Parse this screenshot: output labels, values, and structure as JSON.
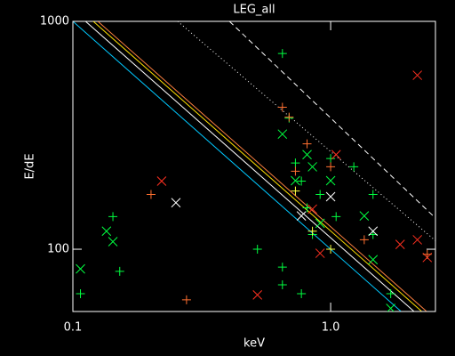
{
  "chart_data": {
    "type": "scatter",
    "title": "LEG_all",
    "xlabel": "keV",
    "ylabel": "E/dE",
    "xscale": "log",
    "yscale": "log",
    "xlim": [
      0.1,
      2.55
    ],
    "ylim": [
      53.3,
      1000
    ],
    "xticks": [
      0.1,
      {
        "value": 1,
        "label": "1.0"
      }
    ],
    "yticks": [
      100,
      1000
    ],
    "series": [
      {
        "mode": "line",
        "color": "#00c8ff",
        "dash": "solid",
        "x": [
          0.1,
          1.87
        ],
        "values": [
          1000,
          53.5
        ]
      },
      {
        "mode": "line",
        "color": "#ffffff",
        "dash": "solid",
        "x": [
          0.112,
          2.1
        ],
        "values": [
          1000,
          53.5
        ]
      },
      {
        "mode": "line",
        "color": "#ffe000",
        "dash": "solid",
        "x": [
          0.12,
          2.25
        ],
        "values": [
          1000,
          53.5
        ]
      },
      {
        "mode": "line",
        "color": "#ff8040",
        "dash": "solid",
        "x": [
          0.125,
          2.35
        ],
        "values": [
          1000,
          53.5
        ]
      },
      {
        "mode": "line",
        "color": "#ffffff",
        "dash": "dotted",
        "x": [
          0.255,
          2.55
        ],
        "values": [
          1000,
          109
        ]
      },
      {
        "mode": "line",
        "color": "#ffffff",
        "dash": "dashed",
        "x": [
          0.405,
          2.55
        ],
        "values": [
          1000,
          137
        ]
      },
      {
        "mode": "markers",
        "marker": "plus",
        "color": "#00ff40",
        "x": [
          0.107,
          0.143,
          0.152,
          0.52,
          0.65,
          0.65,
          0.69,
          0.73,
          0.77,
          0.81,
          0.85,
          0.91,
          1.0,
          1.05,
          1.23,
          1.46,
          1.46,
          1.71,
          0.77,
          0.65
        ],
        "values": [
          63.8,
          139,
          80,
          100,
          723,
          83.5,
          376,
          239,
          199,
          152,
          116,
          174,
          250,
          139,
          230,
          174,
          116,
          63.8,
          63.8,
          69.8
        ]
      },
      {
        "mode": "markers",
        "marker": "cross",
        "color": "#00ff40",
        "x": [
          0.107,
          0.135,
          0.143,
          0.65,
          0.73,
          0.81,
          0.91,
          1.0,
          1.46,
          1.71,
          1.35,
          0.85
        ],
        "values": [
          82,
          120,
          108,
          320,
          200,
          260,
          130,
          200,
          90,
          55,
          140,
          230
        ]
      },
      {
        "mode": "markers",
        "marker": "cross",
        "color": "#ff3020",
        "x": [
          0.221,
          0.52,
          0.91,
          1.05,
          2.17,
          2.17,
          2.37,
          1.86,
          0.85
        ],
        "values": [
          199,
          63,
          96,
          260,
          580,
          110,
          92,
          105,
          150
        ]
      },
      {
        "mode": "markers",
        "marker": "plus",
        "color": "#ff7030",
        "x": [
          0.201,
          0.276,
          0.65,
          0.69,
          0.73,
          0.81,
          1.0,
          1.35,
          2.37
        ],
        "values": [
          174,
          60,
          420,
          380,
          220,
          290,
          230,
          110,
          95
        ]
      },
      {
        "mode": "markers",
        "marker": "cross",
        "color": "#ffffff",
        "x": [
          0.251,
          0.77,
          1.0,
          1.46
        ],
        "values": [
          160,
          140,
          170,
          120
        ]
      },
      {
        "mode": "markers",
        "marker": "plus",
        "color": "#ffff40",
        "x": [
          0.73,
          0.85,
          1.0
        ],
        "values": [
          180,
          120,
          100
        ]
      }
    ]
  }
}
